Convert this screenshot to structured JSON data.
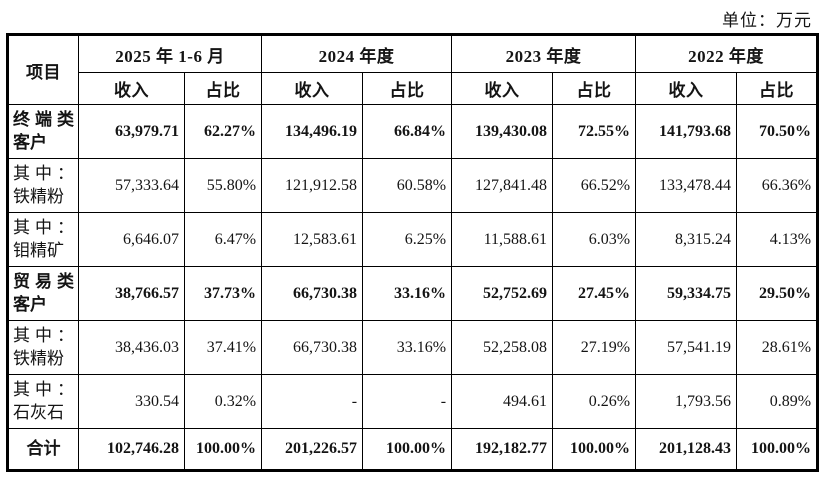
{
  "unit_label": "单位：万元",
  "colors": {
    "border": "#000000",
    "text": "#141414",
    "background": "#ffffff"
  },
  "table": {
    "corner_header": "项目",
    "periods": [
      {
        "label": "2025 年 1-6 月"
      },
      {
        "label": "2024 年度"
      },
      {
        "label": "2023 年度"
      },
      {
        "label": "2022 年度"
      }
    ],
    "sub_headers": {
      "revenue": "收入",
      "share": "占比"
    },
    "rows": [
      {
        "label": "终端类客户",
        "bold": true,
        "center": false,
        "cells": [
          "63,979.71",
          "62.27%",
          "134,496.19",
          "66.84%",
          "139,430.08",
          "72.55%",
          "141,793.68",
          "70.50%"
        ]
      },
      {
        "label": "其中：铁精粉",
        "bold": false,
        "center": false,
        "cells": [
          "57,333.64",
          "55.80%",
          "121,912.58",
          "60.58%",
          "127,841.48",
          "66.52%",
          "133,478.44",
          "66.36%"
        ]
      },
      {
        "label": "其中：钼精矿",
        "bold": false,
        "center": false,
        "cells": [
          "6,646.07",
          "6.47%",
          "12,583.61",
          "6.25%",
          "11,588.61",
          "6.03%",
          "8,315.24",
          "4.13%"
        ]
      },
      {
        "label": "贸易类客户",
        "bold": true,
        "center": false,
        "cells": [
          "38,766.57",
          "37.73%",
          "66,730.38",
          "33.16%",
          "52,752.69",
          "27.45%",
          "59,334.75",
          "29.50%"
        ]
      },
      {
        "label": "其中：铁精粉",
        "bold": false,
        "center": false,
        "cells": [
          "38,436.03",
          "37.41%",
          "66,730.38",
          "33.16%",
          "52,258.08",
          "27.19%",
          "57,541.19",
          "28.61%"
        ]
      },
      {
        "label": "其中：石灰石",
        "bold": false,
        "center": false,
        "cells": [
          "330.54",
          "0.32%",
          "-",
          "-",
          "494.61",
          "0.26%",
          "1,793.56",
          "0.89%"
        ]
      },
      {
        "label": "合计",
        "bold": true,
        "center": true,
        "cells": [
          "102,746.28",
          "100.00%",
          "201,226.57",
          "100.00%",
          "192,182.77",
          "100.00%",
          "201,128.43",
          "100.00%"
        ]
      }
    ]
  }
}
